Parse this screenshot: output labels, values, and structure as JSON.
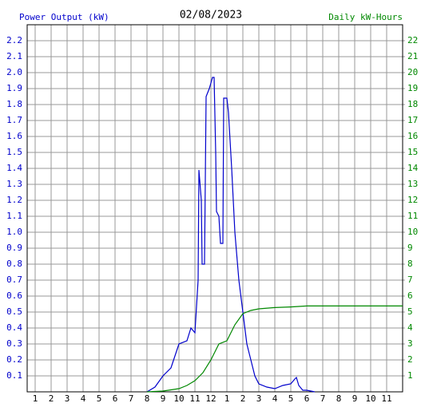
{
  "chart_data": {
    "type": "line",
    "title": "02/08/2023",
    "ylabel": "Power Output (kW)",
    "y2label": "Daily kW-Hours",
    "ylabel_color": "#0000cc",
    "y2label_color": "#008800",
    "xlim": [
      0.5,
      24
    ],
    "ylim": [
      0,
      2.3
    ],
    "y2lim": [
      0,
      23
    ],
    "xticks": [
      {
        "value": 1,
        "label": "1"
      },
      {
        "value": 2,
        "label": "2"
      },
      {
        "value": 3,
        "label": "3"
      },
      {
        "value": 4,
        "label": "4"
      },
      {
        "value": 5,
        "label": "5"
      },
      {
        "value": 6,
        "label": "6"
      },
      {
        "value": 7,
        "label": "7"
      },
      {
        "value": 8,
        "label": "8"
      },
      {
        "value": 9,
        "label": "9"
      },
      {
        "value": 10,
        "label": "10"
      },
      {
        "value": 11,
        "label": "11"
      },
      {
        "value": 12,
        "label": "12"
      },
      {
        "value": 13,
        "label": "1"
      },
      {
        "value": 14,
        "label": "2"
      },
      {
        "value": 15,
        "label": "3"
      },
      {
        "value": 16,
        "label": "4"
      },
      {
        "value": 17,
        "label": "5"
      },
      {
        "value": 18,
        "label": "6"
      },
      {
        "value": 19,
        "label": "7"
      },
      {
        "value": 20,
        "label": "8"
      },
      {
        "value": 21,
        "label": "9"
      },
      {
        "value": 22,
        "label": "10"
      },
      {
        "value": 23,
        "label": "11"
      }
    ],
    "yticks": [
      0.1,
      0.2,
      0.3,
      0.4,
      0.5,
      0.6,
      0.7,
      0.8,
      0.9,
      {
        "value": 1,
        "label": "1.0"
      },
      1.1,
      1.2,
      1.3,
      1.4,
      1.5,
      1.6,
      1.7,
      1.8,
      1.9,
      {
        "value": 2,
        "label": "2.0"
      },
      2.1,
      2.2
    ],
    "y2ticks": [
      1,
      2,
      3,
      4,
      5,
      6,
      7,
      8,
      9,
      10,
      11,
      12,
      13,
      14,
      15,
      16,
      17,
      18,
      19,
      20,
      21,
      22
    ],
    "grid": true,
    "series": [
      {
        "color": "#0000cc",
        "x": [
          8,
          8.5,
          9,
          9.5,
          10,
          10.5,
          10.75,
          11,
          11.2,
          11.25,
          11.4,
          11.45,
          11.6,
          11.7,
          11.9,
          12.1,
          12.2,
          12.3,
          12.35,
          12.5,
          12.6,
          12.75,
          12.8,
          13,
          13.1,
          13.3,
          13.5,
          13.75,
          14,
          14.25,
          14.5,
          14.75,
          15,
          15.5,
          16,
          16.5,
          17,
          17.25,
          17.35,
          17.5,
          17.75,
          18,
          18.5
        ],
        "values": [
          0,
          0.03,
          0.1,
          0.15,
          0.3,
          0.32,
          0.4,
          0.37,
          0.7,
          1.39,
          1.2,
          0.8,
          0.8,
          1.85,
          1.9,
          1.97,
          1.97,
          1.5,
          1.13,
          1.1,
          0.93,
          0.93,
          1.84,
          1.84,
          1.75,
          1.4,
          1.0,
          0.7,
          0.5,
          0.3,
          0.2,
          0.1,
          0.05,
          0.03,
          0.02,
          0.04,
          0.05,
          0.08,
          0.09,
          0.04,
          0.01,
          0.01,
          0
        ]
      },
      {
        "color": "#008800",
        "axis": "y2",
        "x": [
          8,
          9,
          10,
          10.5,
          11,
          11.5,
          12,
          12.5,
          13,
          13.5,
          14,
          14.5,
          15,
          16,
          17,
          18,
          24
        ],
        "values": [
          0,
          0.05,
          0.2,
          0.4,
          0.7,
          1.2,
          2.0,
          3.0,
          3.2,
          4.2,
          4.9,
          5.1,
          5.2,
          5.28,
          5.32,
          5.38,
          5.38
        ]
      }
    ]
  }
}
